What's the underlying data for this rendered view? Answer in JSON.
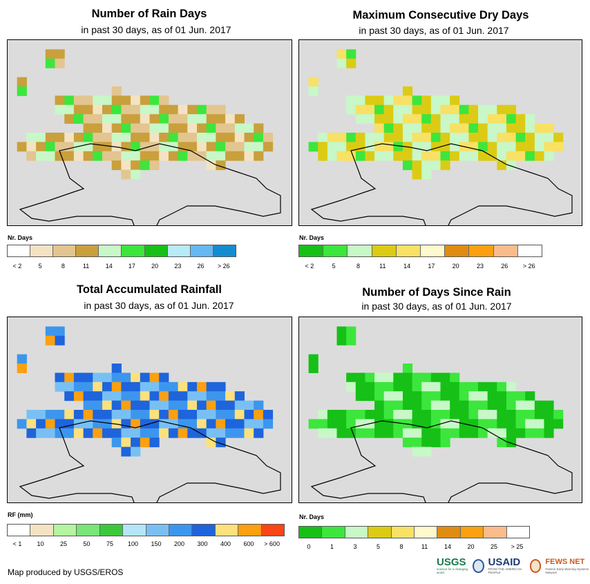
{
  "panels": [
    {
      "title": "Number of Rain Days",
      "subtitle": "in past 30 days, as of 01 Jun. 2017",
      "legend_label": "Nr. Days",
      "legend_colors": [
        "#ffffff",
        "#f4e3c3",
        "#e3c590",
        "#c9a03c",
        "#c8f7c8",
        "#3ce63c",
        "#16c016",
        "#b8eaf8",
        "#64b8f4",
        "#148cd2"
      ],
      "legend_ticks": [
        "< 2",
        "5",
        "8",
        "11",
        "14",
        "17",
        "20",
        "23",
        "26",
        "> 26"
      ]
    },
    {
      "title": "Maximum Consecutive Dry Days",
      "subtitle": "in past 30 days, as of 01 Jun. 2017",
      "legend_label": "Nr. Days",
      "legend_colors": [
        "#16c016",
        "#3ce63c",
        "#c8f7c8",
        "#dccb14",
        "#f8e164",
        "#fffacd",
        "#e08c10",
        "#fba010",
        "#fbbc8c",
        "#ffffff"
      ],
      "legend_ticks": [
        "< 2",
        "5",
        "8",
        "11",
        "14",
        "17",
        "20",
        "23",
        "26",
        "> 26"
      ]
    },
    {
      "title": "Total Accumulated Rainfall",
      "subtitle": "in past 30 days, as of 01 Jun. 2017",
      "legend_label": "RF (mm)",
      "legend_colors": [
        "#ffffff",
        "#f4e3c3",
        "#b4f5a0",
        "#78e678",
        "#3cc83c",
        "#b4e6f8",
        "#78c0f4",
        "#3c96ee",
        "#1e64dc",
        "#fde17c",
        "#fba010",
        "#fa4614"
      ],
      "legend_ticks": [
        "< 1",
        "10",
        "25",
        "50",
        "75",
        "100",
        "150",
        "200",
        "300",
        "400",
        "600",
        "> 600"
      ]
    },
    {
      "title": "Number of Days Since Rain",
      "subtitle": "in past 30 days, as of 01 Jun. 2017",
      "legend_label": "Nr. Days",
      "legend_colors": [
        "#16c016",
        "#3ce63c",
        "#c8f7c8",
        "#dccb14",
        "#f8e164",
        "#fffacd",
        "#e08c10",
        "#fba010",
        "#fbbc8c",
        "#ffffff"
      ],
      "legend_ticks": [
        "0",
        "1",
        "3",
        "5",
        "8",
        "11",
        "14",
        "20",
        "25",
        "> 25"
      ]
    }
  ],
  "footer": "Map produced by USGS/EROS",
  "logos": {
    "usgs": "USGS",
    "usgs_tag": "science for a changing world",
    "usaid": "USAID",
    "usaid_tag": "FROM THE AMERICAN PEOPLE",
    "fews": "FEWS NET",
    "fews_tag": "Famine Early Warning Systems Network"
  },
  "colors": {
    "map_background": "#dcdcdc"
  }
}
